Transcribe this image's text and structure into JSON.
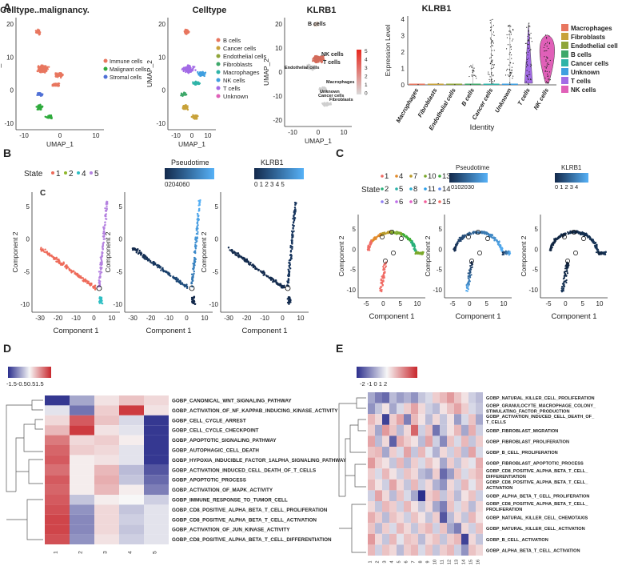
{
  "panel_labels": [
    "A",
    "B",
    "C",
    "D",
    "E"
  ],
  "umap_axis": {
    "xlabel": "UMAP_1",
    "ylabel": "UMAP_2",
    "xticks": [
      "-10",
      "0",
      "10"
    ],
    "yticks": [
      "20",
      "10",
      "0",
      "-10"
    ],
    "yticks_klrb1": [
      "20",
      "10",
      "0",
      "-10",
      "-20"
    ]
  },
  "umap_malignancy": {
    "title": "Celltype..malignancy.",
    "legend": [
      "Immune cells",
      "Malignant cells",
      "Stromal cells"
    ]
  },
  "umap_celltype": {
    "title": "Celltype",
    "legend": [
      "B cells",
      "Cancer cells",
      "Endothelial cells",
      "Fibroblasts",
      "Macrophages",
      "NK cells",
      "T cells",
      "Unknown"
    ]
  },
  "umap_klrb1": {
    "title": "KLRB1",
    "scale": [
      "5",
      "4",
      "3",
      "2",
      "1",
      "0"
    ],
    "labels": [
      "B cells",
      "NK cells",
      "T cells",
      "Endothelial cells",
      "Macrophages",
      "Unknown",
      "Cancer cells",
      "Fibroblasts"
    ]
  },
  "violin": {
    "title": "KLRB1",
    "ylabel": "Expression Level",
    "xlabel": "Identity",
    "categories": [
      "Macrophages",
      "Fibroblasts",
      "Endothelial cells",
      "B cells",
      "Cancer cells",
      "Unknown",
      "T cells",
      "NK cells"
    ],
    "yticks": [
      "4",
      "3",
      "2",
      "1",
      "0"
    ],
    "legend": [
      "Macrophages",
      "Fibroblasts",
      "Endothelial cells",
      "B cells",
      "Cancer cells",
      "Unknown",
      "T cells",
      "NK cells"
    ]
  },
  "trajB": {
    "state_title": "State",
    "states": [
      "1",
      "2",
      "4",
      "5"
    ],
    "pseudotime_title": "Pseudotime",
    "pseudotime_ticks": [
      "0",
      "20",
      "40",
      "60"
    ],
    "klrb1_title": "KLRB1",
    "klrb1_ticks": [
      "0",
      "1",
      "2",
      "3",
      "4",
      "5"
    ],
    "corner_label": "C",
    "xlabel": "Component 1",
    "ylabel": "Component 2",
    "xticks": [
      "-30",
      "-20",
      "-10",
      "0",
      "10"
    ],
    "yticks": [
      "5",
      "0",
      "-5",
      "-10"
    ]
  },
  "trajC": {
    "state_title": "State",
    "states": [
      "1",
      "4",
      "7",
      "10",
      "13",
      "2",
      "5",
      "8",
      "11",
      "14",
      "3",
      "6",
      "9",
      "12",
      "15"
    ],
    "pseudotime_title": "Pseudotime",
    "pseudotime_ticks": [
      "0",
      "10",
      "20",
      "30"
    ],
    "klrb1_title": "KLRB1",
    "klrb1_ticks": [
      "0",
      "1",
      "2",
      "3",
      "4"
    ],
    "xlabel": "Component 1",
    "ylabel": "Component 2",
    "xticks": [
      "-5",
      "0",
      "5",
      "10"
    ],
    "yticks": [
      "5",
      "0",
      "-5",
      "-10"
    ]
  },
  "heatD": {
    "scale": [
      "-1.5",
      "-0.5",
      "0.5",
      "1.5"
    ],
    "columns": [
      "1",
      "2",
      "3",
      "4",
      "5"
    ],
    "rows": [
      "GOBP_CANONICAL_WNT_SIGNALING_PATHWAY",
      "GOBP_ACTIVATION_OF_NF_KAPPAB_INDUCING_KINASE_ACTIVITY",
      "GOBP_CELL_CYCLE_ARREST",
      "GOBP_CELL_CYCLE_CHECKPOINT",
      "GOBP_APOPTOTIC_SIGNALING_PATHWAY",
      "GOBP_AUTOPHAGIC_CELL_DEATH",
      "GOBP_HYPOXIA_INDUCIBLE_FACTOR_1ALPHA_SIGNALING_PATHWAY",
      "GOBP_ACTIVATION_INDUCED_CELL_DEATH_OF_T_CELLS",
      "GOBP_APOPTOTIC_PROCESS",
      "GOBP_ACTIVATION_OF_MAPK_ACTIVITY",
      "GOBP_IMMUNE_RESPONSE_TO_TUMOR_CELL",
      "GOBP_CD8_POSITIVE_ALPHA_BETA_T_CELL_PROLIFERATION",
      "GOBP_CD8_POSITIVE_ALPHA_BETA_T_CELL_ACTIVATION",
      "GOBP_ACTIVATION_OF_JUN_KINASE_ACTIVITY",
      "GOBP_CD8_POSITIVE_ALPHA_BETA_T_CELL_DIFFERENTIATION"
    ]
  },
  "heatE": {
    "scale": [
      "-2",
      "-1",
      "0",
      "1",
      "2"
    ],
    "columns": [
      "1",
      "2",
      "3",
      "4",
      "5",
      "6",
      "7",
      "8",
      "9",
      "10",
      "11",
      "12",
      "13",
      "14",
      "15",
      "16"
    ],
    "rows": [
      "GOBP_NATURAL_KILLER_CELL_PROLIFERATION",
      "GOBP_GRANULOCYTE_MACROPHAGE_COLONY_ STIMULATING_FACTOR_PRODUCTION",
      "GOBP_ACTIVATION_INDUCED_CELL_DEATH_OF_ T_CELLS",
      "GOBP_FIBROBLAST_MIGRATION",
      "GOBP_FIBROBLAST_PROLIFERATION",
      "GOBP_B_CELL_PROLIFERATION",
      "GOBP_FIBROBLAST_APOPTOTIC_PROCESS",
      "GOBP_CD8_POSITIVE_ALPHA_BETA_T_CELL_ DIFFERENTIATION",
      "GOBP_CD8_POSITIVE_ALPHA_BETA_T_CELL_ ACTIVATION",
      "GOBP_ALPHA_BETA_T_CELL_PROLIFERATION",
      "GOBP_CD8_POSITIVE_ALPHA_BETA_T_CELL_ PROLIFERATION",
      "GOBP_NATURAL_KILLER_CELL_CHEMOTAXIS",
      "GOBP_NATURAL_KILLER_CELL_ACTIVATION",
      "GOBP_B_CELL_ACTIVATION",
      "GOBP_ALPHA_BETA_T_CELL_ACTIVATION"
    ]
  },
  "colors": {
    "immune": "#e8765f",
    "malignant": "#2eaa3c",
    "stromal": "#4f70d6",
    "celltype": [
      "#e8765f",
      "#c8a23a",
      "#8fa53a",
      "#3ea86a",
      "#2fb4a8",
      "#3f9fe0",
      "#a36be6",
      "#e060b8"
    ],
    "violin": [
      "#e8765f",
      "#c8a23a",
      "#8fa53a",
      "#3ea86a",
      "#2fb4a8",
      "#3f9fe0",
      "#a36be6",
      "#e060b8"
    ],
    "heat_low": "#2b2e8c",
    "heat_mid": "#f7f7f7",
    "heat_high": "#c8262c",
    "pseudo_low": "#13294b",
    "pseudo_high": "#56b1f7",
    "trajB_states": [
      "#ee6b5a",
      "#8fb82c",
      "#2fbfc4",
      "#b481e0"
    ],
    "trajC_states": [
      "#f06b64",
      "#e28a2a",
      "#b99a2a",
      "#7aa82a",
      "#3fae3a",
      "#2ab07a",
      "#2ab2a8",
      "#2aaed0",
      "#2a9ee8",
      "#5b8cf0",
      "#8f7ef2",
      "#bf6ee8",
      "#e260c8",
      "#f25d9a",
      "#f06b64"
    ]
  },
  "chart_data": [
    {
      "type": "heatmap",
      "title": "",
      "columns": [
        "1",
        "2",
        "3",
        "4",
        "5"
      ],
      "rows": [
        "GOBP_CANONICAL_WNT_SIGNALING_PATHWAY",
        "GOBP_ACTIVATION_OF_NF_KAPPAB_INDUCING_KINASE_ACTIVITY",
        "GOBP_CELL_CYCLE_ARREST",
        "GOBP_CELL_CYCLE_CHECKPOINT",
        "GOBP_APOPTOTIC_SIGNALING_PATHWAY",
        "GOBP_AUTOPHAGIC_CELL_DEATH",
        "GOBP_HYPOXIA_INDUCIBLE_FACTOR_1ALPHA_SIGNALING_PATHWAY",
        "GOBP_ACTIVATION_INDUCED_CELL_DEATH_OF_T_CELLS",
        "GOBP_APOPTOTIC_PROCESS",
        "GOBP_ACTIVATION_OF_MAPK_ACTIVITY",
        "GOBP_IMMUNE_RESPONSE_TO_TUMOR_CELL",
        "GOBP_CD8_POSITIVE_ALPHA_BETA_T_CELL_PROLIFERATION",
        "GOBP_CD8_POSITIVE_ALPHA_BETA_T_CELL_ACTIVATION",
        "GOBP_ACTIVATION_OF_JUN_KINASE_ACTIVITY",
        "GOBP_CD8_POSITIVE_ALPHA_BETA_T_CELL_DIFFERENTIATION"
      ],
      "values": [
        [
          -1.9,
          -0.8,
          0.2,
          0.5,
          0.3
        ],
        [
          -0.2,
          -1.3,
          0.4,
          1.8,
          0.2
        ],
        [
          0.3,
          1.5,
          0.5,
          -0.3,
          -1.9
        ],
        [
          0.6,
          1.8,
          0.2,
          -0.2,
          -1.9
        ],
        [
          1.2,
          0.3,
          0.4,
          0.1,
          -1.9
        ],
        [
          1.4,
          0.4,
          0.3,
          -0.2,
          -1.9
        ],
        [
          1.5,
          0.1,
          0.2,
          -0.2,
          -1.9
        ],
        [
          1.3,
          0.1,
          0.6,
          -0.6,
          -1.6
        ],
        [
          1.5,
          0.1,
          0.7,
          -0.5,
          -1.4
        ],
        [
          1.4,
          0.1,
          0.6,
          0.1,
          -1.2
        ],
        [
          1.5,
          -0.5,
          0.1,
          0.0,
          -0.4
        ],
        [
          1.6,
          -1.0,
          0.3,
          -0.5,
          -0.2
        ],
        [
          1.7,
          -1.1,
          0.3,
          -0.4,
          -0.2
        ],
        [
          1.7,
          -1.1,
          0.3,
          -0.5,
          -0.2
        ],
        [
          1.6,
          -1.0,
          0.2,
          -0.4,
          -0.2
        ]
      ],
      "zlim": [
        -2,
        2
      ]
    },
    {
      "type": "heatmap",
      "title": "",
      "columns": [
        "1",
        "2",
        "3",
        "4",
        "5",
        "6",
        "7",
        "8",
        "9",
        "10",
        "11",
        "12",
        "13",
        "14",
        "15",
        "16"
      ],
      "rows": [
        "GOBP_NATURAL_KILLER_CELL_PROLIFERATION",
        "GOBP_GRANULOCYTE_MACROPHAGE_COLONY_ STIMULATING_FACTOR_PRODUCTION",
        "GOBP_ACTIVATION_INDUCED_CELL_DEATH_OF_ T_CELLS",
        "GOBP_FIBROBLAST_MIGRATION",
        "GOBP_FIBROBLAST_PROLIFERATION",
        "GOBP_B_CELL_PROLIFERATION",
        "GOBP_FIBROBLAST_APOPTOTIC_PROCESS",
        "GOBP_CD8_POSITIVE_ALPHA_BETA_T_CELL_ DIFFERENTIATION",
        "GOBP_CD8_POSITIVE_ALPHA_BETA_T_CELL_ ACTIVATION",
        "GOBP_ALPHA_BETA_T_CELL_PROLIFERATION",
        "GOBP_CD8_POSITIVE_ALPHA_BETA_T_CELL_ PROLIFERATION",
        "GOBP_NATURAL_KILLER_CELL_CHEMOTAXIS",
        "GOBP_NATURAL_KILLER_CELL_ACTIVATION",
        "GOBP_B_CELL_ACTIVATION",
        "GOBP_ALPHA_BETA_T_CELL_ACTIVATION"
      ],
      "values": [
        [
          -0.8,
          -1.2,
          -1.4,
          -0.6,
          -0.9,
          -0.7,
          -1.0,
          -0.5,
          -0.3,
          0.4,
          0.6,
          0.9,
          0.5,
          0.2,
          -0.4,
          -0.6
        ],
        [
          -1.0,
          -0.5,
          0.2,
          -0.8,
          -0.3,
          0.4,
          0.8,
          0.3,
          -0.4,
          -0.6,
          0.2,
          0.5,
          0.8,
          0.4,
          -0.3,
          -0.5
        ],
        [
          0.6,
          0.3,
          -1.8,
          0.4,
          0.8,
          -1.2,
          0.6,
          0.2,
          -0.6,
          0.3,
          -0.5,
          0.2,
          -0.9,
          -0.3,
          0.5,
          -0.8
        ],
        [
          0.4,
          -0.8,
          0.9,
          0.5,
          -0.6,
          0.3,
          1.4,
          -0.4,
          0.5,
          -1.3,
          -0.5,
          0.2,
          0.6,
          -0.8,
          0.7,
          -0.4
        ],
        [
          0.8,
          -0.6,
          0.3,
          -1.5,
          0.7,
          0.4,
          0.2,
          -0.6,
          0.8,
          -0.4,
          -1.1,
          0.5,
          -0.3,
          0.6,
          -0.5,
          0.4
        ],
        [
          0.5,
          0.6,
          -0.8,
          0.4,
          -0.3,
          0.8,
          -0.5,
          0.6,
          -0.2,
          -0.7,
          0.3,
          -0.4,
          0.5,
          -0.6,
          0.8,
          -0.3
        ],
        [
          0.9,
          0.4,
          0.2,
          -0.5,
          0.6,
          -0.6,
          0.4,
          -0.3,
          0.5,
          0.2,
          -0.8,
          0.4,
          -0.5,
          0.3,
          -0.2,
          0.7
        ],
        [
          0.4,
          -0.3,
          0.6,
          0.2,
          -0.4,
          0.5,
          0.3,
          -0.6,
          -0.8,
          0.4,
          -1.4,
          -0.9,
          0.5,
          -0.3,
          0.4,
          0.6
        ],
        [
          0.6,
          0.2,
          -0.4,
          0.8,
          0.3,
          -0.5,
          0.6,
          -0.4,
          0.3,
          -0.7,
          -1.0,
          0.3,
          -0.4,
          0.6,
          -0.2,
          0.5
        ],
        [
          -0.4,
          0.8,
          0.3,
          -0.6,
          0.5,
          -0.3,
          -0.8,
          -2.0,
          0.4,
          0.6,
          -0.5,
          0.4,
          -0.6,
          0.2,
          0.5,
          -0.4
        ],
        [
          0.3,
          -0.5,
          0.6,
          0.4,
          -0.4,
          0.6,
          0.2,
          -0.5,
          0.3,
          -0.8,
          -1.2,
          0.5,
          -0.3,
          0.4,
          -0.6,
          0.3
        ],
        [
          0.7,
          0.4,
          -0.6,
          0.5,
          0.3,
          -0.4,
          0.5,
          0.2,
          -0.5,
          0.4,
          -1.6,
          -0.6,
          0.3,
          -0.5,
          0.6,
          0.2
        ],
        [
          0.5,
          -0.6,
          0.4,
          -0.3,
          0.6,
          0.3,
          -0.5,
          0.4,
          0.6,
          -0.4,
          0.5,
          -0.8,
          -1.2,
          0.3,
          -0.4,
          0.5
        ],
        [
          0.9,
          0.3,
          -0.5,
          0.6,
          -0.2,
          0.5,
          0.4,
          -0.6,
          0.3,
          0.5,
          -0.5,
          0.4,
          0.6,
          -1.8,
          0.3,
          -0.5
        ],
        [
          0.6,
          -0.4,
          0.5,
          0.3,
          -0.6,
          0.4,
          0.6,
          -0.3,
          0.5,
          -0.5,
          0.4,
          0.6,
          -0.4,
          -1.0,
          0.5,
          0.3
        ]
      ],
      "zlim": [
        -2,
        2
      ]
    },
    {
      "type": "scatter",
      "title": "KLRB1",
      "ylabel": "Expression Level",
      "xlabel": "Identity",
      "categories": [
        "Macrophages",
        "Fibroblasts",
        "Endothelial cells",
        "B cells",
        "Cancer cells",
        "Unknown",
        "T cells",
        "NK cells"
      ],
      "max_values": [
        0.1,
        0.1,
        0.1,
        1.6,
        5.0,
        4.6,
        4.7,
        3.8
      ],
      "ylim": [
        0,
        5
      ]
    }
  ]
}
